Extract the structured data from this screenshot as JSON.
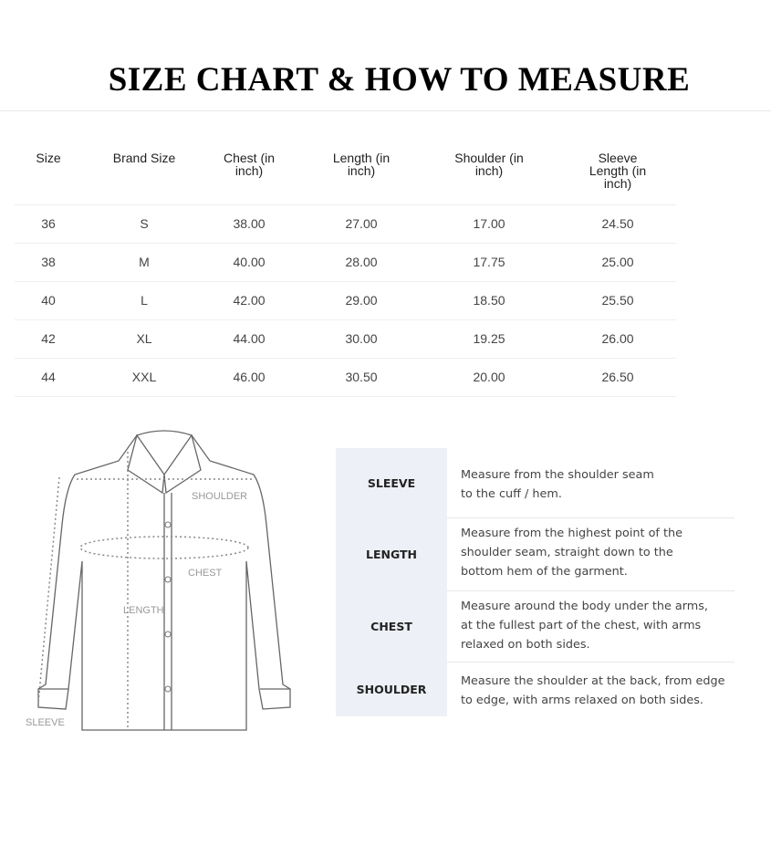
{
  "title": "SIZE CHART & HOW TO MEASURE",
  "size_table": {
    "headers": [
      "Size",
      "Brand Size",
      "Chest (in\ninch)",
      "Length (in\ninch)",
      "Shoulder (in\ninch)",
      "Sleeve\nLength (in\ninch)"
    ],
    "rows": [
      [
        "36",
        "S",
        "38.00",
        "27.00",
        "17.00",
        "24.50"
      ],
      [
        "38",
        "M",
        "40.00",
        "28.00",
        "17.75",
        "25.00"
      ],
      [
        "40",
        "L",
        "42.00",
        "29.00",
        "18.50",
        "25.50"
      ],
      [
        "42",
        "XL",
        "44.00",
        "30.00",
        "19.25",
        "26.00"
      ],
      [
        "44",
        "XXL",
        "46.00",
        "30.50",
        "20.00",
        "26.50"
      ]
    ]
  },
  "diagram_labels": {
    "shoulder": "SHOULDER",
    "chest": "CHEST",
    "length": "LENGTH",
    "sleeve": "SLEEVE"
  },
  "measure_guide": [
    {
      "label": "SLEEVE",
      "text": "Measure from the shoulder seam\nto the cuff / hem."
    },
    {
      "label": "LENGTH",
      "text": "Measure from the highest point of the\nshoulder seam, straight down to the\nbottom hem of the garment."
    },
    {
      "label": "CHEST",
      "text": "Measure around the body under the arms,\nat the fullest part of the chest, with arms\nrelaxed on both sides."
    },
    {
      "label": "SHOULDER",
      "text": "Measure the shoulder at the back, from edge\nto edge, with arms relaxed on both sides."
    }
  ],
  "colors": {
    "guide_label_bg": "#edf0f6",
    "text": "#444444"
  }
}
